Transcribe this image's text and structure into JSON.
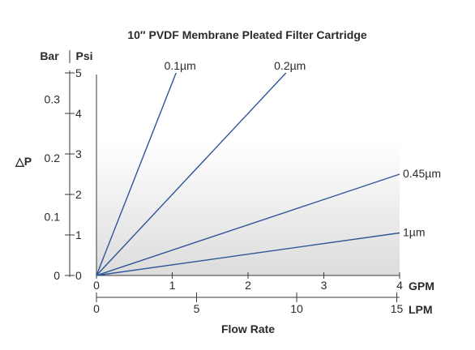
{
  "chart_data": {
    "type": "line",
    "title": "10″ PVDF Membrane Pleated Filter Cartridge",
    "xlabel": "Flow Rate",
    "ylabel": "△P",
    "x_unit_primary": "GPM",
    "x_unit_secondary": "LPM",
    "y_unit_primary": "Psi",
    "y_unit_secondary": "Bar",
    "xlim": [
      0,
      4
    ],
    "ylim": [
      0,
      5
    ],
    "x_ticks": [
      "0",
      "1",
      "2",
      "3",
      "4"
    ],
    "x2_ticks": [
      {
        "label": "0",
        "value": 0
      },
      {
        "label": "5",
        "value": 5
      },
      {
        "label": "10",
        "value": 10
      },
      {
        "label": "15",
        "value": 15
      }
    ],
    "y_ticks": [
      "0",
      "1",
      "2",
      "3",
      "4",
      "5"
    ],
    "y2_ticks": [
      {
        "label": "0",
        "value": 0
      },
      {
        "label": "0.1",
        "value": 0.1
      },
      {
        "label": "0.2",
        "value": 0.2
      },
      {
        "label": "0.3",
        "value": 0.3
      }
    ],
    "series": [
      {
        "name": "0.1µm",
        "x": [
          0,
          1.05
        ],
        "y": [
          0,
          5.0
        ]
      },
      {
        "name": "0.2µm",
        "x": [
          0,
          2.5
        ],
        "y": [
          0,
          5.0
        ]
      },
      {
        "name": "0.45µm",
        "x": [
          0,
          4.0
        ],
        "y": [
          0,
          2.5
        ]
      },
      {
        "name": "1µm",
        "x": [
          0,
          4.0
        ],
        "y": [
          0,
          1.05
        ]
      }
    ],
    "colors": {
      "line": "#2f5597",
      "axis": "#3a3a3a",
      "text": "#2a2a2a"
    },
    "background": "gradient"
  }
}
